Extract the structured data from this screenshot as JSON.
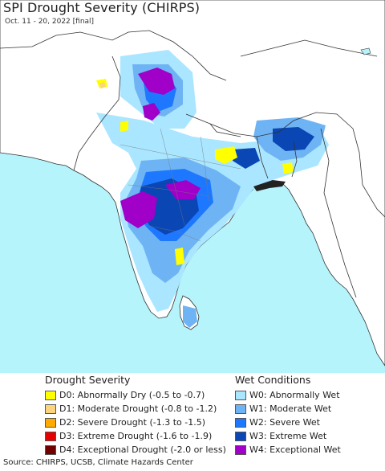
{
  "header": {
    "title": "SPI Drought Severity (CHIRPS)",
    "subtitle": "Oct. 11 - 20, 2022 [final]"
  },
  "colors": {
    "ocean": "#b5f4fb",
    "land": "#ffffff",
    "border": "#333333"
  },
  "legend": {
    "drought": {
      "heading": "Drought Severity",
      "items": [
        {
          "label": "D0: Abnormally Dry (-0.5 to -0.7)",
          "color": "#ffff00"
        },
        {
          "label": "D1: Moderate Drought (-0.8 to -1.2)",
          "color": "#fcd37f"
        },
        {
          "label": "D2: Severe Drought (-1.3 to -1.5)",
          "color": "#ffaa00"
        },
        {
          "label": "D3: Extreme Drought (-1.6 to -1.9)",
          "color": "#e60000"
        },
        {
          "label": "D4: Exceptional Drought (-2.0 or less)",
          "color": "#730000"
        }
      ]
    },
    "wet": {
      "heading": "Wet Conditions",
      "items": [
        {
          "label": "W0: Abnormally Wet",
          "color": "#aae6ff"
        },
        {
          "label": "W1: Moderate Wet",
          "color": "#6eb4f5"
        },
        {
          "label": "W2: Severe Wet",
          "color": "#1e78ff"
        },
        {
          "label": "W3: Extreme Wet",
          "color": "#0a46b4"
        },
        {
          "label": "W4: Exceptional Wet",
          "color": "#a000c8"
        }
      ]
    }
  },
  "footer": {
    "source": "Source: CHIRPS, UCSB, Climate Hazards Center"
  }
}
